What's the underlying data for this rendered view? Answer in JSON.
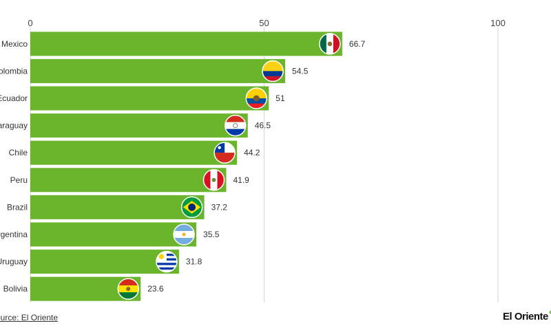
{
  "chart_data": {
    "type": "bar",
    "orientation": "horizontal",
    "categories": [
      "Mexico",
      "Colombia",
      "Ecuador",
      "Paraguay",
      "Chile",
      "Peru",
      "Brazil",
      "Argentina",
      "Uruguay",
      "Bolivia"
    ],
    "values": [
      66.7,
      54.5,
      51,
      46.5,
      44.2,
      41.9,
      37.2,
      35.5,
      31.8,
      23.6
    ],
    "data_labels": [
      "66.7",
      "54.5",
      "51",
      "46.5",
      "44.2",
      "41.9",
      "37.2",
      "35.5",
      "31.8",
      "23.6"
    ],
    "flags": [
      "mexico-flag-icon",
      "colombia-flag-icon",
      "ecuador-flag-icon",
      "paraguay-flag-icon",
      "chile-flag-icon",
      "peru-flag-icon",
      "brazil-flag-icon",
      "argentina-flag-icon",
      "uruguay-flag-icon",
      "bolivia-flag-icon"
    ],
    "xlim": [
      0,
      100
    ],
    "xticks": [
      0,
      50,
      100
    ],
    "xtick_labels": [
      "0",
      "50",
      "100"
    ],
    "grid": true,
    "bar_color": "#6ab52b",
    "title": "",
    "xlabel": "",
    "ylabel": ""
  },
  "footer": {
    "source": "Source: El Oriente",
    "brand": "El Oriente"
  }
}
